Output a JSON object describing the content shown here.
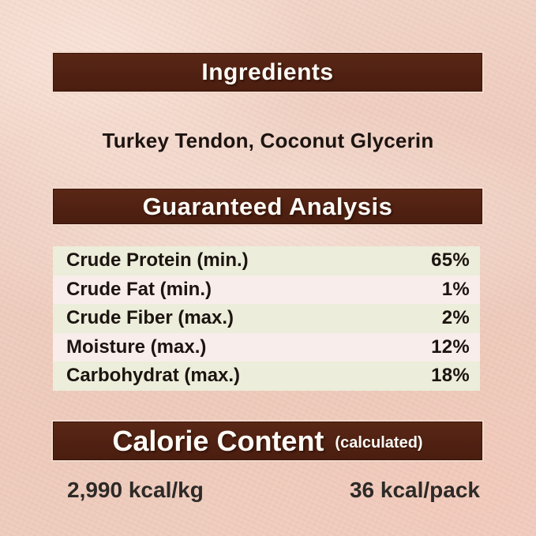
{
  "colors": {
    "background": "#eeccbe",
    "header_bar": "#522213",
    "header_text": "#fdfbf6",
    "row_stripe_green": "#ecedda",
    "row_stripe_pink": "#f8edea",
    "body_text": "#1c1410"
  },
  "ingredients": {
    "title": "Ingredients",
    "list": "Turkey Tendon, Coconut Glycerin"
  },
  "guaranteed_analysis": {
    "title": "Guaranteed Analysis",
    "rows": [
      {
        "label": "Crude Protein (min.)",
        "value": "65%"
      },
      {
        "label": "Crude Fat (min.)",
        "value": "1%"
      },
      {
        "label": "Crude Fiber (max.)",
        "value": "2%"
      },
      {
        "label": "Moisture (max.)",
        "value": "12%"
      },
      {
        "label": "Carbohydrat (max.)",
        "value": "18%"
      }
    ]
  },
  "calorie_content": {
    "title": "Calorie Content",
    "subtitle": "(calculated)",
    "per_kg": "2,990 kcal/kg",
    "per_pack": "36 kcal/pack"
  }
}
